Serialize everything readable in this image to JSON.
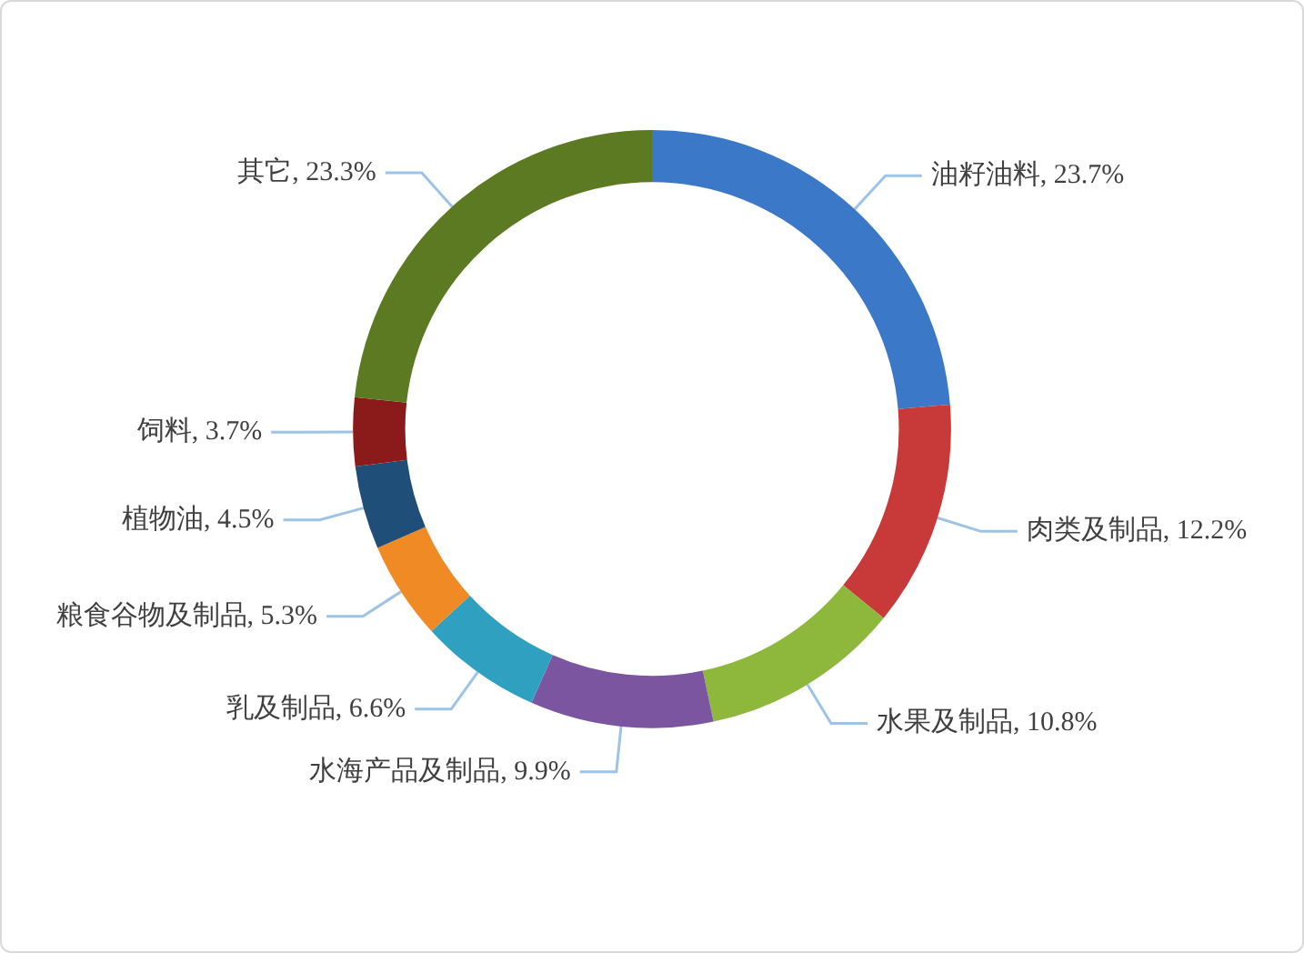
{
  "chart_data": {
    "type": "donut",
    "categories": [
      "油籽油料",
      "肉类及制品",
      "水果及制品",
      "水海产品及制品",
      "乳及制品",
      "粮食谷物及制品",
      "植物油",
      "饲料",
      "其它"
    ],
    "values": [
      23.7,
      12.2,
      10.8,
      9.9,
      6.6,
      5.3,
      4.5,
      3.7,
      23.3
    ],
    "colors": [
      "#3b78c8",
      "#c8393a",
      "#8db83c",
      "#7b55a0",
      "#2fa0c0",
      "#f08a24",
      "#1f4e79",
      "#8b1a1a",
      "#5b7a22"
    ],
    "value_labels": [
      "23.7%",
      "12.2%",
      "10.8%",
      "9.9%",
      "6.6%",
      "5.3%",
      "4.5%",
      "3.7%",
      "23.3%"
    ]
  }
}
